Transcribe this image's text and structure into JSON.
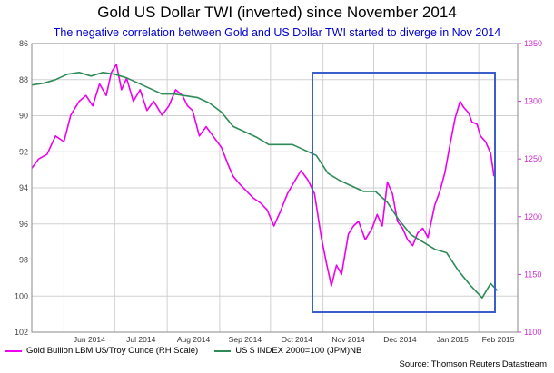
{
  "title": "Gold  US Dollar TWI (inverted) since November 2014",
  "subtitle": "The negative correlation between Gold and US Dollar TWI started to diverge in Nov 2014",
  "source": "Source: Thomson Reuters Datastream",
  "colors": {
    "gold": "#ee00ee",
    "usd": "#2e8b57",
    "box": "#3a5fcd",
    "grid": "#d0d0d0",
    "right_axis": "#cc33cc"
  },
  "chart_data": {
    "type": "line",
    "left_axis": {
      "ticks": [
        "86",
        "88",
        "90",
        "92",
        "94",
        "96",
        "98",
        "100",
        "102"
      ],
      "ylim": [
        86,
        102
      ],
      "inverted": true
    },
    "right_axis": {
      "ticks": [
        "1350",
        "1300",
        "1250",
        "1200",
        "1150",
        "1100"
      ],
      "ylim": [
        1100,
        1350
      ]
    },
    "x_ticks": [
      "Jun 2014",
      "Jul 2014",
      "Aug 2014",
      "Sep 2014",
      "Oct 2014",
      "Nov 2014",
      "Dec 2014",
      "Jan 2015",
      "Feb 2015"
    ],
    "x_range": [
      "2014-05-13",
      "2015-02-24"
    ],
    "legend": [
      "Gold Bullion LBM U$/Troy Ounce (RH Scale)",
      "US $ INDEX 2000=100 (JPM)NB"
    ],
    "legend_position": "bottom",
    "grid": true,
    "series": [
      {
        "name": "Gold Bullion LBM U$/Troy Ounce (RH Scale)",
        "axis": "right",
        "points": [
          [
            "2014-05-13",
            1242
          ],
          [
            "2014-05-17",
            1250
          ],
          [
            "2014-05-22",
            1254
          ],
          [
            "2014-05-27",
            1270
          ],
          [
            "2014-06-01",
            1265
          ],
          [
            "2014-06-05",
            1288
          ],
          [
            "2014-06-10",
            1300
          ],
          [
            "2014-06-14",
            1305
          ],
          [
            "2014-06-18",
            1296
          ],
          [
            "2014-06-22",
            1315
          ],
          [
            "2014-06-26",
            1305
          ],
          [
            "2014-06-29",
            1325
          ],
          [
            "2014-07-02",
            1332
          ],
          [
            "2014-07-05",
            1310
          ],
          [
            "2014-07-08",
            1320
          ],
          [
            "2014-07-12",
            1300
          ],
          [
            "2014-07-16",
            1310
          ],
          [
            "2014-07-20",
            1292
          ],
          [
            "2014-07-24",
            1300
          ],
          [
            "2014-07-29",
            1288
          ],
          [
            "2014-08-02",
            1296
          ],
          [
            "2014-08-06",
            1310
          ],
          [
            "2014-08-10",
            1305
          ],
          [
            "2014-08-13",
            1296
          ],
          [
            "2014-08-16",
            1292
          ],
          [
            "2014-08-20",
            1270
          ],
          [
            "2014-08-24",
            1278
          ],
          [
            "2014-08-28",
            1270
          ],
          [
            "2014-09-02",
            1260
          ],
          [
            "2014-09-06",
            1245
          ],
          [
            "2014-09-09",
            1235
          ],
          [
            "2014-09-13",
            1228
          ],
          [
            "2014-09-17",
            1222
          ],
          [
            "2014-09-21",
            1216
          ],
          [
            "2014-09-25",
            1212
          ],
          [
            "2014-09-29",
            1206
          ],
          [
            "2014-10-03",
            1192
          ],
          [
            "2014-10-07",
            1205
          ],
          [
            "2014-10-11",
            1220
          ],
          [
            "2014-10-15",
            1230
          ],
          [
            "2014-10-19",
            1240
          ],
          [
            "2014-10-23",
            1232
          ],
          [
            "2014-10-27",
            1220
          ],
          [
            "2014-10-31",
            1182
          ],
          [
            "2014-11-03",
            1160
          ],
          [
            "2014-11-06",
            1140
          ],
          [
            "2014-11-09",
            1158
          ],
          [
            "2014-11-12",
            1150
          ],
          [
            "2014-11-16",
            1185
          ],
          [
            "2014-11-19",
            1192
          ],
          [
            "2014-11-22",
            1196
          ],
          [
            "2014-11-26",
            1180
          ],
          [
            "2014-11-30",
            1190
          ],
          [
            "2014-12-03",
            1202
          ],
          [
            "2014-12-06",
            1192
          ],
          [
            "2014-12-09",
            1230
          ],
          [
            "2014-12-12",
            1220
          ],
          [
            "2014-12-15",
            1196
          ],
          [
            "2014-12-18",
            1190
          ],
          [
            "2014-12-21",
            1180
          ],
          [
            "2014-12-24",
            1175
          ],
          [
            "2014-12-27",
            1186
          ],
          [
            "2014-12-30",
            1190
          ],
          [
            "2015-01-02",
            1182
          ],
          [
            "2015-01-06",
            1210
          ],
          [
            "2015-01-09",
            1222
          ],
          [
            "2015-01-12",
            1238
          ],
          [
            "2015-01-15",
            1262
          ],
          [
            "2015-01-18",
            1285
          ],
          [
            "2015-01-21",
            1300
          ],
          [
            "2015-01-23",
            1295
          ],
          [
            "2015-01-26",
            1290
          ],
          [
            "2015-01-28",
            1282
          ],
          [
            "2015-01-31",
            1280
          ],
          [
            "2015-02-02",
            1270
          ],
          [
            "2015-02-05",
            1265
          ],
          [
            "2015-02-08",
            1255
          ],
          [
            "2015-02-10",
            1235
          ]
        ]
      },
      {
        "name": "US $ INDEX 2000=100 (JPM)NB",
        "axis": "left",
        "points": [
          [
            "2014-05-13",
            88.3
          ],
          [
            "2014-05-20",
            88.2
          ],
          [
            "2014-05-27",
            88.0
          ],
          [
            "2014-06-03",
            87.7
          ],
          [
            "2014-06-10",
            87.6
          ],
          [
            "2014-06-17",
            87.8
          ],
          [
            "2014-06-24",
            87.6
          ],
          [
            "2014-07-01",
            87.7
          ],
          [
            "2014-07-08",
            87.9
          ],
          [
            "2014-07-15",
            88.2
          ],
          [
            "2014-07-22",
            88.5
          ],
          [
            "2014-07-29",
            88.8
          ],
          [
            "2014-08-05",
            88.8
          ],
          [
            "2014-08-12",
            88.9
          ],
          [
            "2014-08-19",
            89.0
          ],
          [
            "2014-08-26",
            89.3
          ],
          [
            "2014-09-02",
            89.8
          ],
          [
            "2014-09-09",
            90.6
          ],
          [
            "2014-09-16",
            90.9
          ],
          [
            "2014-09-23",
            91.2
          ],
          [
            "2014-09-30",
            91.6
          ],
          [
            "2014-10-07",
            91.6
          ],
          [
            "2014-10-14",
            91.6
          ],
          [
            "2014-10-21",
            91.9
          ],
          [
            "2014-10-28",
            92.2
          ],
          [
            "2014-11-04",
            93.2
          ],
          [
            "2014-11-11",
            93.6
          ],
          [
            "2014-11-18",
            93.9
          ],
          [
            "2014-11-25",
            94.2
          ],
          [
            "2014-12-02",
            94.2
          ],
          [
            "2014-12-09",
            94.8
          ],
          [
            "2014-12-16",
            95.8
          ],
          [
            "2014-12-23",
            96.6
          ],
          [
            "2014-12-30",
            97.0
          ],
          [
            "2015-01-06",
            97.4
          ],
          [
            "2015-01-13",
            97.6
          ],
          [
            "2015-01-20",
            98.6
          ],
          [
            "2015-01-27",
            99.4
          ],
          [
            "2015-02-03",
            100.1
          ],
          [
            "2015-02-08",
            99.3
          ],
          [
            "2015-02-12",
            99.7
          ]
        ]
      }
    ]
  }
}
